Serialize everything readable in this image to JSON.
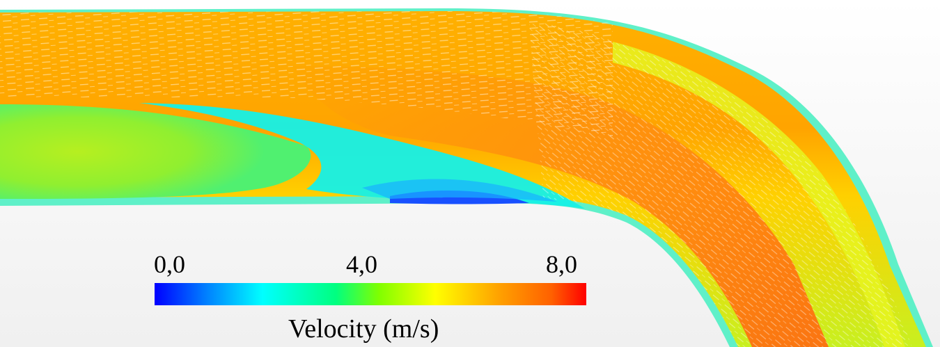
{
  "colorbar": {
    "min_label": "0,0",
    "mid_label": "4,0",
    "max_label": "8,0",
    "title": "Velocity (m/s)",
    "range": [
      0,
      8
    ],
    "colormap": [
      "#0000ff",
      "#0080ff",
      "#00ffff",
      "#00ff80",
      "#80ff00",
      "#ffff00",
      "#ffa000",
      "#ff6000",
      "#ff0000"
    ]
  },
  "colors": {
    "background": "#f2f2f2",
    "pipe_outer": "#66ffcc",
    "fast_core": "#ff8a10",
    "fast_straight": "#ffb000",
    "mid_flow": "#d6f520",
    "recirculation": "#14f2ea",
    "low_speed": "#1850ff"
  }
}
